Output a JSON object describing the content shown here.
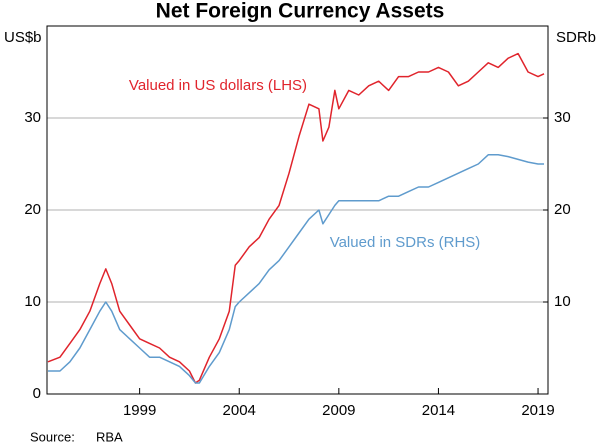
{
  "chart_data": {
    "type": "line",
    "title": "Net Foreign Currency Assets",
    "y_label": "US$b",
    "y2_label": "SDRb",
    "source_label": "Source:",
    "source": "RBA",
    "annotations": [
      "Valued in US dollars (LHS)",
      "Valued in SDRs (RHS)"
    ],
    "x": [
      1994.4,
      1995.0,
      1995.5,
      1996.0,
      1996.5,
      1997.0,
      1997.3,
      1997.6,
      1998.0,
      1998.5,
      1999.0,
      1999.5,
      2000.0,
      2000.5,
      2001.0,
      2001.5,
      2001.8,
      2002.0,
      2002.5,
      2003.0,
      2003.5,
      2003.8,
      2004.0,
      2004.5,
      2005.0,
      2005.5,
      2006.0,
      2006.5,
      2007.0,
      2007.5,
      2008.0,
      2008.2,
      2008.5,
      2008.8,
      2009.0,
      2009.5,
      2010.0,
      2010.5,
      2011.0,
      2011.5,
      2012.0,
      2012.5,
      2013.0,
      2013.5,
      2014.0,
      2014.5,
      2015.0,
      2015.5,
      2016.0,
      2016.5,
      2017.0,
      2017.5,
      2018.0,
      2018.5,
      2019.0,
      2019.3
    ],
    "series": [
      {
        "name": "Valued in US dollars (LHS)",
        "color": "#e0242c",
        "axis": "y",
        "values": [
          3.5,
          4,
          5.5,
          7,
          9,
          12,
          13.6,
          12,
          9,
          7.5,
          6,
          5.5,
          5,
          4,
          3.5,
          2.5,
          1.2,
          1.5,
          4,
          6,
          9,
          14,
          14.5,
          16,
          17,
          19,
          20.5,
          24,
          28,
          31.5,
          31,
          27.5,
          29,
          33,
          31,
          33,
          32.5,
          33.5,
          34,
          33,
          34.5,
          34.5,
          35,
          35,
          35.5,
          35,
          33.5,
          34,
          35,
          36,
          35.5,
          36.5,
          37,
          35,
          34.5,
          34.8
        ]
      },
      {
        "name": "Valued in SDRs (RHS)",
        "color": "#5f9bcd",
        "axis": "y2",
        "values": [
          2.5,
          2.5,
          3.5,
          5,
          7,
          9,
          10,
          9,
          7,
          6,
          5,
          4,
          4,
          3.5,
          3,
          2,
          1.2,
          1.2,
          3,
          4.5,
          7,
          9.5,
          10,
          11,
          12,
          13.5,
          14.5,
          16,
          17.5,
          19,
          20,
          18.5,
          19.5,
          20.5,
          21,
          21,
          21,
          21,
          21,
          21.5,
          21.5,
          22,
          22.5,
          22.5,
          23,
          23.5,
          24,
          24.5,
          25,
          26,
          26,
          25.8,
          25.5,
          25.2,
          25,
          25
        ]
      }
    ],
    "xlim": [
      1994.35,
      2019.5
    ],
    "xticks": [
      1999,
      2004,
      2009,
      2014,
      2019
    ],
    "ylim": [
      0,
      40
    ],
    "yticks": [
      0,
      10,
      20,
      30
    ],
    "y2lim": [
      0,
      40
    ],
    "y2ticks": [
      10,
      20,
      30
    ],
    "grid": true
  }
}
